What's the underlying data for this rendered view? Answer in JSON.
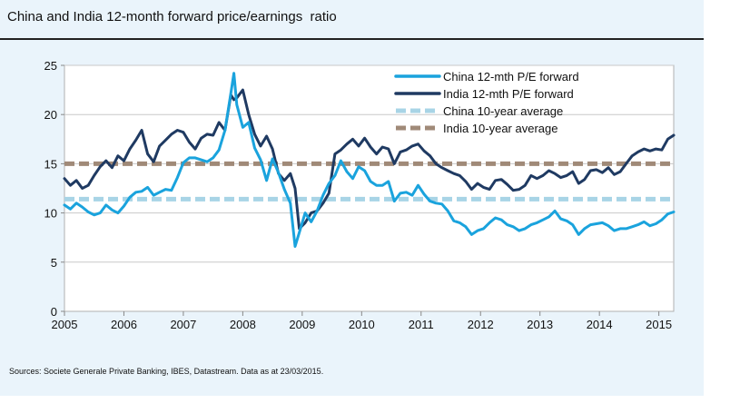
{
  "title": "China and India 12-month forward price/earnings  ratio",
  "source": "Sources: Societe Generale Private Banking, IBES, Datastream. Data as at 23/03/2015.",
  "chart_data": {
    "type": "line",
    "title": "China and India 12-month forward price/earnings  ratio",
    "xlabel": "",
    "ylabel": "",
    "xlim": [
      2005,
      2015.25
    ],
    "ylim": [
      0,
      25
    ],
    "x_ticks": [
      2005,
      2006,
      2007,
      2008,
      2009,
      2010,
      2011,
      2012,
      2013,
      2014,
      2015
    ],
    "y_ticks": [
      0,
      5,
      10,
      15,
      20,
      25
    ],
    "grid": "horizontal",
    "legend_position": "top-right",
    "series": [
      {
        "name": "China 12-mth P/E forward",
        "color": "#1aa3dd",
        "style": "solid",
        "x": [
          2005.0,
          2005.1,
          2005.2,
          2005.3,
          2005.4,
          2005.5,
          2005.6,
          2005.7,
          2005.8,
          2005.9,
          2006.0,
          2006.1,
          2006.2,
          2006.3,
          2006.4,
          2006.5,
          2006.6,
          2006.7,
          2006.8,
          2006.9,
          2007.0,
          2007.1,
          2007.2,
          2007.3,
          2007.4,
          2007.5,
          2007.6,
          2007.7,
          2007.8,
          2007.85,
          2007.9,
          2008.0,
          2008.1,
          2008.2,
          2008.3,
          2008.4,
          2008.5,
          2008.6,
          2008.7,
          2008.8,
          2008.88,
          2008.95,
          2009.05,
          2009.15,
          2009.25,
          2009.35,
          2009.45,
          2009.55,
          2009.65,
          2009.75,
          2009.85,
          2009.95,
          2010.05,
          2010.15,
          2010.25,
          2010.35,
          2010.45,
          2010.55,
          2010.65,
          2010.75,
          2010.85,
          2010.95,
          2011.05,
          2011.15,
          2011.25,
          2011.35,
          2011.45,
          2011.55,
          2011.65,
          2011.75,
          2011.85,
          2011.95,
          2012.05,
          2012.15,
          2012.25,
          2012.35,
          2012.45,
          2012.55,
          2012.65,
          2012.75,
          2012.85,
          2012.95,
          2013.05,
          2013.15,
          2013.25,
          2013.35,
          2013.45,
          2013.55,
          2013.65,
          2013.75,
          2013.85,
          2013.95,
          2014.05,
          2014.15,
          2014.25,
          2014.35,
          2014.45,
          2014.55,
          2014.65,
          2014.75,
          2014.85,
          2014.95,
          2015.05,
          2015.15,
          2015.25
        ],
        "values": [
          10.8,
          10.4,
          11.0,
          10.6,
          10.1,
          9.8,
          10.0,
          10.8,
          10.3,
          10.0,
          10.7,
          11.6,
          12.1,
          12.2,
          12.6,
          11.8,
          12.1,
          12.4,
          12.3,
          13.6,
          15.1,
          15.6,
          15.6,
          15.4,
          15.2,
          15.6,
          16.4,
          18.4,
          22.2,
          24.2,
          21.0,
          18.7,
          19.2,
          16.6,
          15.4,
          13.3,
          15.5,
          14.1,
          12.4,
          11.0,
          6.6,
          8.0,
          10.0,
          9.1,
          10.2,
          11.8,
          13.0,
          13.8,
          15.3,
          14.2,
          13.5,
          14.7,
          14.3,
          13.2,
          12.8,
          12.8,
          13.2,
          11.2,
          12.0,
          12.1,
          11.8,
          12.8,
          11.9,
          11.2,
          11.0,
          10.9,
          10.2,
          9.2,
          9.0,
          8.6,
          7.8,
          8.2,
          8.4,
          9.0,
          9.5,
          9.3,
          8.8,
          8.6,
          8.2,
          8.4,
          8.8,
          9.0,
          9.3,
          9.6,
          10.2,
          9.4,
          9.2,
          8.8,
          7.8,
          8.4,
          8.8,
          8.9,
          9.0,
          8.7,
          8.2,
          8.4,
          8.4,
          8.6,
          8.8,
          9.1,
          8.7,
          8.9,
          9.3,
          9.9,
          10.1
        ]
      },
      {
        "name": "India 12-mth P/E forward",
        "color": "#1f3a62",
        "style": "solid",
        "x": [
          2005.0,
          2005.1,
          2005.2,
          2005.3,
          2005.4,
          2005.5,
          2005.6,
          2005.7,
          2005.8,
          2005.9,
          2006.0,
          2006.1,
          2006.2,
          2006.3,
          2006.4,
          2006.5,
          2006.6,
          2006.7,
          2006.8,
          2006.9,
          2007.0,
          2007.1,
          2007.2,
          2007.3,
          2007.4,
          2007.5,
          2007.6,
          2007.7,
          2007.8,
          2007.85,
          2007.9,
          2008.0,
          2008.1,
          2008.2,
          2008.3,
          2008.4,
          2008.5,
          2008.6,
          2008.7,
          2008.8,
          2008.88,
          2008.95,
          2009.05,
          2009.15,
          2009.25,
          2009.35,
          2009.45,
          2009.55,
          2009.65,
          2009.75,
          2009.85,
          2009.95,
          2010.05,
          2010.15,
          2010.25,
          2010.35,
          2010.45,
          2010.55,
          2010.65,
          2010.75,
          2010.85,
          2010.95,
          2011.05,
          2011.15,
          2011.25,
          2011.35,
          2011.45,
          2011.55,
          2011.65,
          2011.75,
          2011.85,
          2011.95,
          2012.05,
          2012.15,
          2012.25,
          2012.35,
          2012.45,
          2012.55,
          2012.65,
          2012.75,
          2012.85,
          2012.95,
          2013.05,
          2013.15,
          2013.25,
          2013.35,
          2013.45,
          2013.55,
          2013.65,
          2013.75,
          2013.85,
          2013.95,
          2014.05,
          2014.15,
          2014.25,
          2014.35,
          2014.45,
          2014.55,
          2014.65,
          2014.75,
          2014.85,
          2014.95,
          2015.05,
          2015.15,
          2015.25
        ],
        "values": [
          13.5,
          12.8,
          13.3,
          12.5,
          12.8,
          13.8,
          14.7,
          15.3,
          14.6,
          15.8,
          15.3,
          16.5,
          17.4,
          18.4,
          16.0,
          15.2,
          16.8,
          17.4,
          18.0,
          18.4,
          18.2,
          17.2,
          16.5,
          17.6,
          18.0,
          17.9,
          19.2,
          18.4,
          22.0,
          21.5,
          21.7,
          22.5,
          20.0,
          18.0,
          16.8,
          17.8,
          16.5,
          14.0,
          13.3,
          14.0,
          12.5,
          8.4,
          9.0,
          10.0,
          10.2,
          11.0,
          12.0,
          16.0,
          16.4,
          17.0,
          17.5,
          16.8,
          17.6,
          16.7,
          16.0,
          16.7,
          16.5,
          15.0,
          16.2,
          16.4,
          16.8,
          17.0,
          16.3,
          15.8,
          15.0,
          14.6,
          14.3,
          14.0,
          13.8,
          13.2,
          12.4,
          13.0,
          12.6,
          12.4,
          13.3,
          13.4,
          12.9,
          12.3,
          12.4,
          12.8,
          13.8,
          13.5,
          13.8,
          14.3,
          14.0,
          13.6,
          13.8,
          14.2,
          13.0,
          13.4,
          14.3,
          14.4,
          14.1,
          14.6,
          13.9,
          14.2,
          15.0,
          15.8,
          16.2,
          16.5,
          16.3,
          16.5,
          16.4,
          17.5,
          17.9
        ]
      },
      {
        "name": "China 10-year average",
        "color": "#a8d4e6",
        "style": "dashed",
        "x": [
          2005,
          2015.25
        ],
        "values": [
          11.4,
          11.4
        ]
      },
      {
        "name": "India 10-year average",
        "color": "#a08a78",
        "style": "dashed",
        "x": [
          2005,
          2015.25
        ],
        "values": [
          15.0,
          15.0
        ]
      }
    ]
  }
}
